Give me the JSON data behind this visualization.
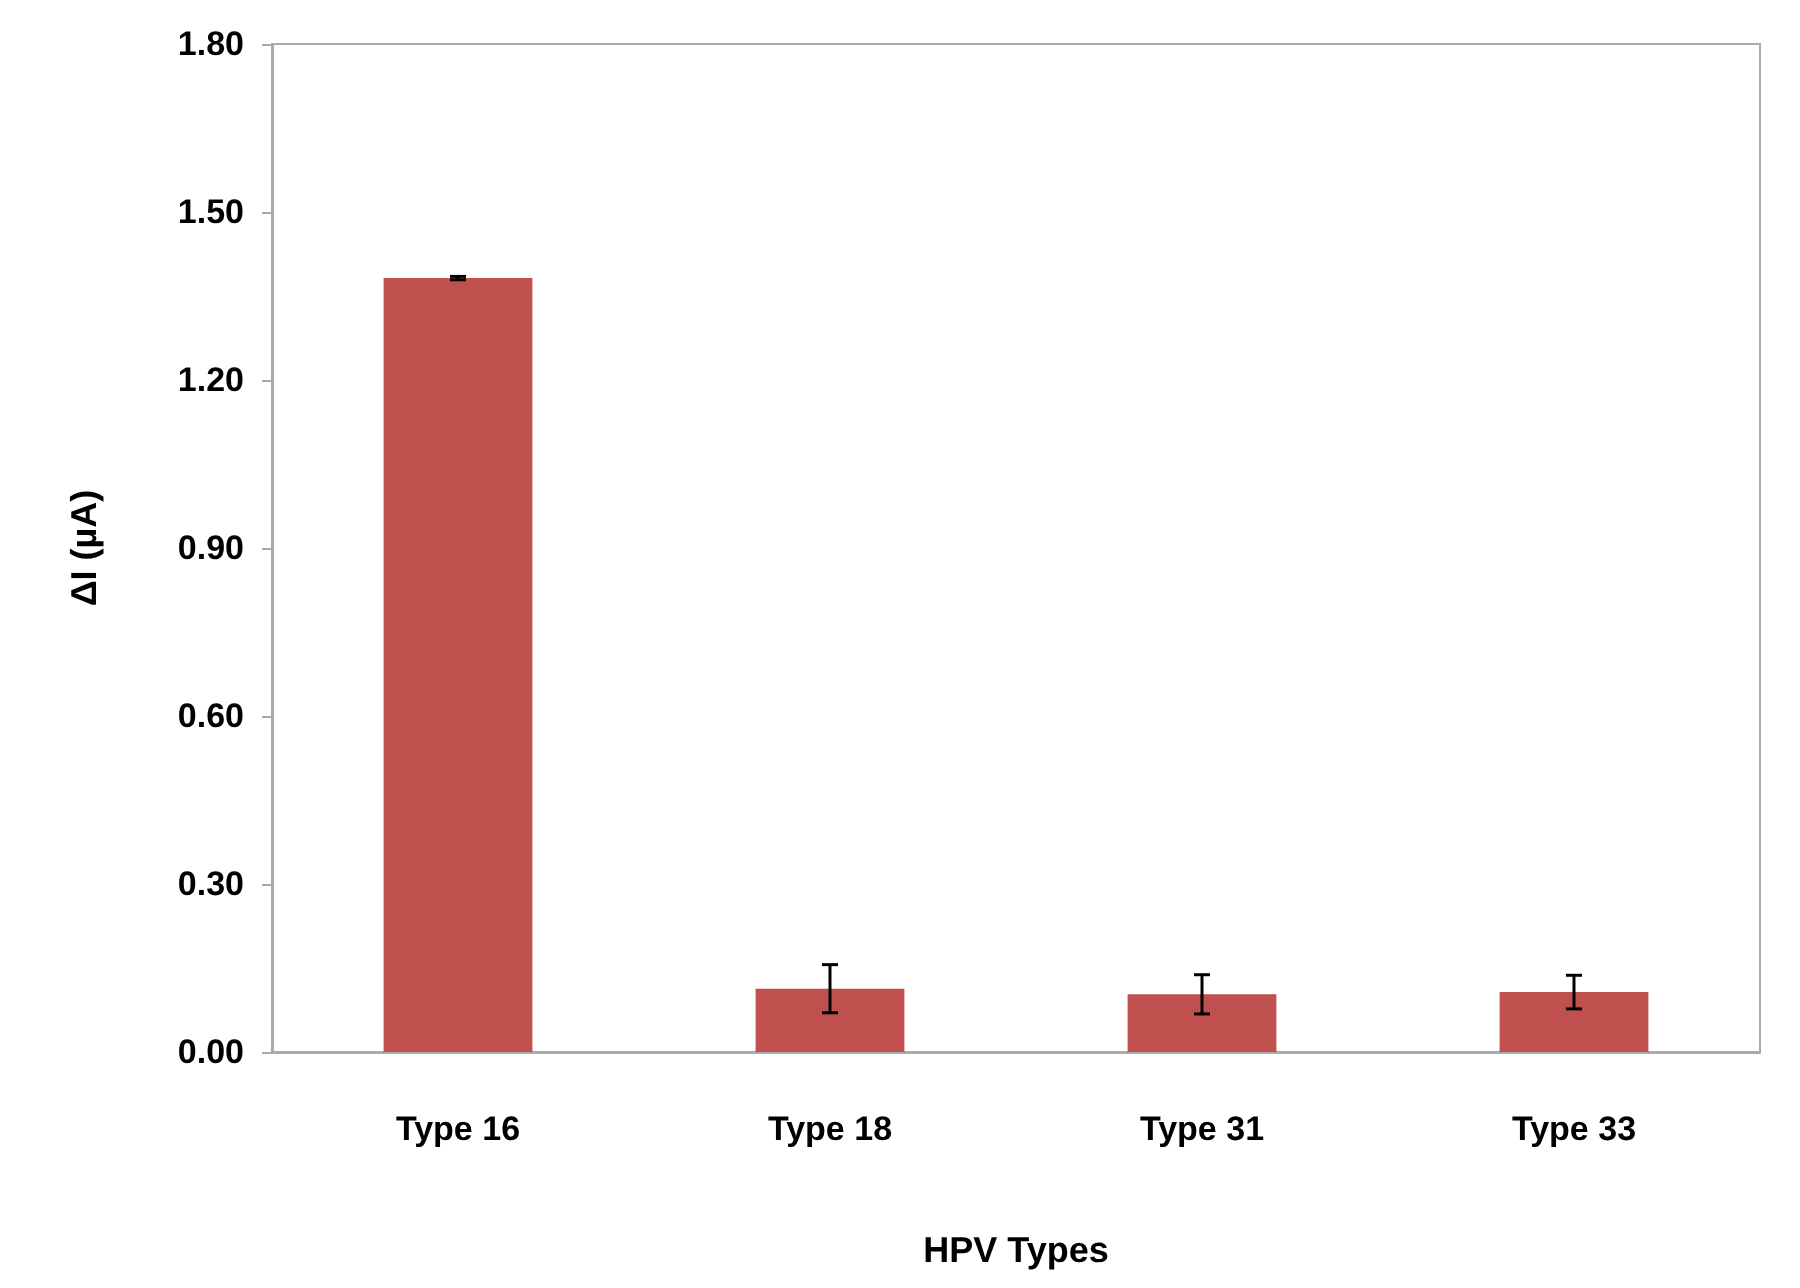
{
  "chart_data": {
    "type": "bar",
    "xlabel": "HPV Types",
    "ylabel": "ΔI (µA)",
    "categories": [
      "Type 16",
      "Type 18",
      "Type 31",
      "Type 33"
    ],
    "values": [
      1.382,
      0.113,
      0.103,
      0.107
    ],
    "errors": [
      0.003,
      0.043,
      0.035,
      0.03
    ],
    "color": "#c0504d",
    "ylim": [
      0,
      1.8
    ],
    "yticks": [
      {
        "value": 0,
        "label": "0.00"
      },
      {
        "value": 0.3,
        "label": "0.30"
      },
      {
        "value": 0.6,
        "label": "0.60"
      },
      {
        "value": 0.9,
        "label": "0.90"
      },
      {
        "value": 1.2,
        "label": "1.20"
      },
      {
        "value": 1.5,
        "label": "1.50"
      },
      {
        "value": 1.8,
        "label": "1.80"
      }
    ],
    "grid": false
  }
}
